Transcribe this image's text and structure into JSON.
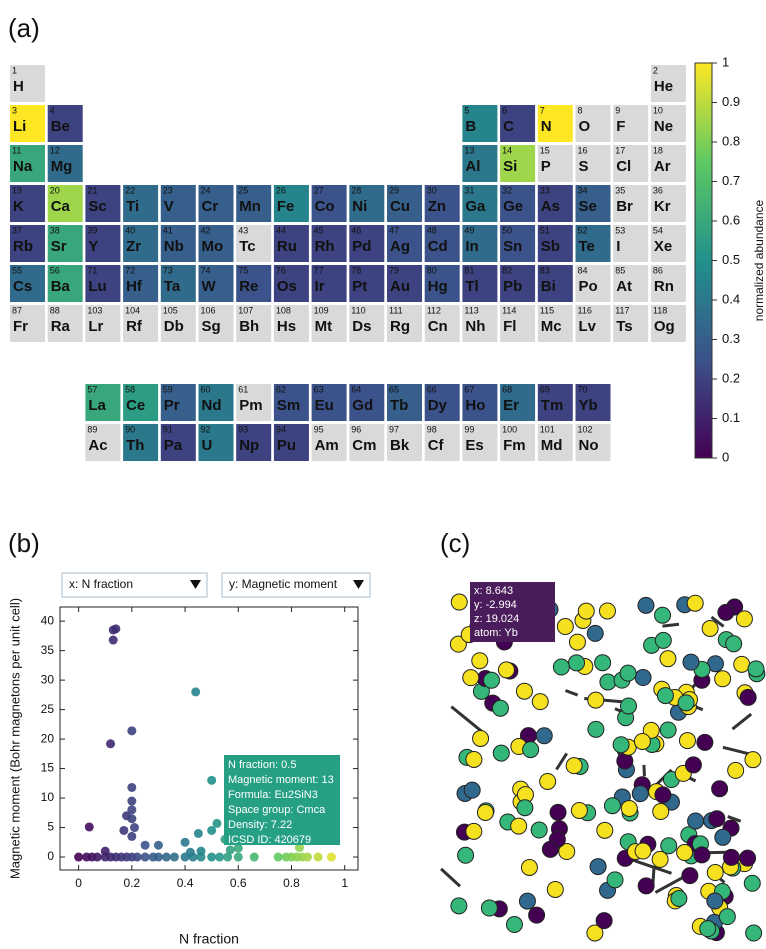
{
  "panels": [
    "(a)",
    "(b)",
    "(c)"
  ],
  "chart_data": [
    {
      "type": "heatmap",
      "symbols": [
        "H",
        "He",
        "Li",
        "Be",
        "B",
        "C",
        "N",
        "O",
        "F",
        "Ne",
        "Na",
        "Mg",
        "Al",
        "Si",
        "P",
        "S",
        "Cl",
        "Ar",
        "K",
        "Ca",
        "Sc",
        "Ti",
        "V",
        "Cr",
        "Mn",
        "Fe",
        "Co",
        "Ni",
        "Cu",
        "Zn",
        "Ga",
        "Ge",
        "As",
        "Se",
        "Br",
        "Kr",
        "Rb",
        "Sr",
        "Y",
        "Zr",
        "Nb",
        "Mo",
        "Tc",
        "Ru",
        "Rh",
        "Pd",
        "Ag",
        "Cd",
        "In",
        "Sn",
        "Sb",
        "Te",
        "I",
        "Xe",
        "Cs",
        "Ba",
        "La",
        "Ce",
        "Pr",
        "Nd",
        "Pm",
        "Sm",
        "Eu",
        "Gd",
        "Tb",
        "Dy",
        "Ho",
        "Er",
        "Tm",
        "Yb",
        "Lu",
        "Hf",
        "Ta",
        "W",
        "Re",
        "Os",
        "Ir",
        "Pt",
        "Au",
        "Hg",
        "Tl",
        "Pb",
        "Bi",
        "Po",
        "At",
        "Rn",
        "Fr",
        "Ra",
        "Ac",
        "Th",
        "Pa",
        "U",
        "Np",
        "Pu",
        "Am",
        "Cm",
        "Bk",
        "Cf",
        "Es",
        "Fm",
        "Md",
        "No",
        "Lr",
        "Rf",
        "Db",
        "Sg",
        "Bh",
        "Hs",
        "Mt",
        "Ds",
        "Rg",
        "Cn",
        "Nh",
        "Fl",
        "Mc",
        "Lv",
        "Ts",
        "Og"
      ],
      "numbers": [
        1,
        2,
        3,
        4,
        5,
        6,
        7,
        8,
        9,
        10,
        11,
        12,
        13,
        14,
        15,
        16,
        17,
        18,
        19,
        20,
        21,
        22,
        23,
        24,
        25,
        26,
        27,
        28,
        29,
        30,
        31,
        32,
        33,
        34,
        35,
        36,
        37,
        38,
        39,
        40,
        41,
        42,
        43,
        44,
        45,
        46,
        47,
        48,
        49,
        50,
        51,
        52,
        53,
        54,
        55,
        56,
        57,
        58,
        59,
        60,
        61,
        62,
        63,
        64,
        65,
        66,
        67,
        68,
        69,
        70,
        71,
        72,
        73,
        74,
        75,
        76,
        77,
        78,
        79,
        80,
        81,
        82,
        83,
        84,
        85,
        86,
        87,
        88,
        89,
        90,
        91,
        92,
        93,
        94,
        95,
        96,
        97,
        98,
        99,
        100,
        101,
        102,
        103,
        104,
        105,
        106,
        107,
        108,
        109,
        110,
        111,
        112,
        113,
        114,
        115,
        116,
        117,
        118
      ],
      "values": [
        null,
        null,
        1,
        0.2,
        0.45,
        0.2,
        1,
        null,
        null,
        null,
        0.6,
        0.35,
        0.4,
        0.85,
        null,
        null,
        null,
        null,
        0.2,
        0.85,
        0.2,
        0.35,
        0.3,
        0.3,
        0.3,
        0.45,
        0.25,
        0.35,
        0.3,
        0.25,
        0.4,
        0.25,
        0.2,
        0.3,
        null,
        null,
        0.2,
        0.6,
        0.2,
        0.35,
        0.3,
        0.3,
        null,
        0.2,
        0.2,
        0.2,
        0.25,
        0.25,
        0.35,
        0.25,
        0.2,
        0.35,
        null,
        null,
        0.35,
        0.6,
        0.6,
        0.55,
        0.3,
        0.4,
        null,
        0.25,
        0.25,
        0.25,
        0.3,
        0.25,
        0.25,
        0.35,
        0.2,
        0.2,
        0.2,
        0.3,
        0.35,
        0.3,
        0.25,
        0.2,
        0.2,
        0.2,
        0.2,
        0.25,
        0.2,
        0.2,
        0.2,
        null,
        null,
        null,
        null,
        null,
        null,
        0.4,
        0.2,
        0.4,
        0.2,
        0.2,
        null,
        null,
        null,
        null,
        null,
        null,
        null,
        null,
        null,
        null,
        null,
        null,
        null,
        null,
        null,
        null,
        null,
        null,
        null,
        null,
        null,
        null,
        null,
        null
      ],
      "missing_color": "#d9d9d9",
      "ylim": [
        0,
        1
      ],
      "yticks": [
        0,
        0.1,
        0.2,
        0.3,
        0.4,
        0.5,
        0.6,
        0.7,
        0.8,
        0.9,
        1
      ],
      "ylabel": "normalized abundance"
    },
    {
      "type": "scatter",
      "controls": [
        "x: N fraction",
        "y: Magnetic moment"
      ],
      "x": [
        0.13,
        0.14,
        0.13,
        0.12,
        0.2,
        0.44,
        0.5,
        0.2,
        0.2,
        0.2,
        0.18,
        0.2,
        0.04,
        0.21,
        0.52,
        0.5,
        0.45,
        0.55,
        0.3,
        0.25,
        0.4,
        0.2,
        0.17,
        0.6,
        0.46,
        0.1,
        0,
        0.03,
        0.05,
        0.07,
        0.1,
        0.12,
        0.14,
        0.16,
        0.18,
        0.2,
        0.22,
        0.25,
        0.28,
        0.3,
        0.33,
        0.36,
        0.4,
        0.43,
        0.46,
        0.5,
        0.53,
        0.56,
        0.6,
        0.66,
        0.75,
        0.78,
        0.8,
        0.82,
        0.84,
        0.86,
        0.9,
        0.95,
        0.83,
        0.42,
        0.57
      ],
      "y": [
        38.5,
        38.7,
        36.8,
        19.2,
        21.4,
        28,
        13,
        11.8,
        9.5,
        8,
        7,
        6.5,
        5.1,
        5,
        5.7,
        4.5,
        4,
        3,
        2,
        2,
        2.5,
        3.5,
        4.5,
        1.5,
        1,
        1,
        0,
        0,
        0,
        0,
        0,
        0,
        0,
        0,
        0,
        0,
        0,
        0,
        0,
        0,
        0,
        0,
        0,
        0,
        0,
        0,
        0,
        0,
        0,
        0,
        0,
        0,
        0,
        0,
        0,
        0,
        0,
        0,
        1.6,
        0.8,
        1.2
      ],
      "xlim": [
        -0.07,
        1.05
      ],
      "xticks": [
        0,
        0.2,
        0.4,
        0.6,
        0.8,
        1
      ],
      "ylim": [
        -2.2,
        42.4
      ],
      "yticks": [
        0,
        5,
        10,
        15,
        20,
        25,
        30,
        35,
        40
      ],
      "xlabel": "N fraction",
      "ylabel": "Magnetic moment (Bohr magnetons per unit cell)",
      "tooltip": [
        "N fraction: 0.5",
        "Magnetic moment: 13",
        "Formula: Eu2SiN3",
        "Space group: Cmca",
        "Density: 7.22",
        "ICSD ID: 420679"
      ]
    }
  ],
  "structure": {
    "tooltip": [
      "x: 8.643",
      "y: -2.994",
      "z: 19.024",
      "atom: Yb"
    ]
  }
}
